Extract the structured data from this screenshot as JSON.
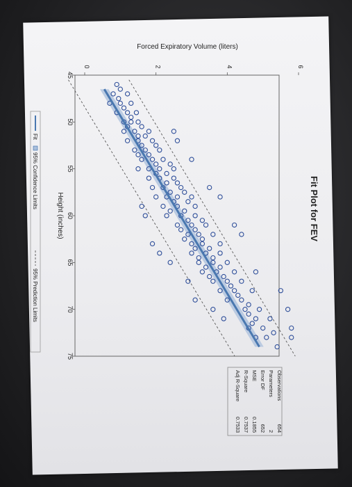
{
  "chart_data": {
    "type": "scatter",
    "title": "Fit Plot for FEV",
    "xlabel": "Height (inches)",
    "ylabel": "Forced Expiratory Volume (liters)",
    "xlim": [
      45,
      75
    ],
    "ylim": [
      0,
      6
    ],
    "x_ticks": [
      "45",
      "50",
      "55",
      "60",
      "65",
      "70",
      "75"
    ],
    "y_ticks": [
      "0",
      "2",
      "4",
      "6"
    ],
    "series": [
      {
        "name": "Fit",
        "type": "line",
        "color": "#4a78b0",
        "x": [
          46.5,
          74.0
        ],
        "y": [
          0.55,
          4.9
        ]
      },
      {
        "name": "95% Confidence Limits",
        "type": "band",
        "color": "#a9bfdc"
      },
      {
        "name": "95% Prediction Limits",
        "type": "dashed",
        "color": "#555555",
        "offset": 0.85
      }
    ],
    "points": [
      [
        46,
        0.9
      ],
      [
        46.5,
        1.0
      ],
      [
        47,
        0.8
      ],
      [
        47,
        1.2
      ],
      [
        47.5,
        0.95
      ],
      [
        48,
        1.0
      ],
      [
        48,
        1.3
      ],
      [
        48,
        0.7
      ],
      [
        48.5,
        1.1
      ],
      [
        49,
        1.2
      ],
      [
        49,
        1.45
      ],
      [
        49,
        0.9
      ],
      [
        49.5,
        1.3
      ],
      [
        50,
        1.1
      ],
      [
        50,
        1.5
      ],
      [
        50,
        1.3
      ],
      [
        50.5,
        1.6
      ],
      [
        50.5,
        1.2
      ],
      [
        51,
        1.4
      ],
      [
        51,
        1.8
      ],
      [
        51,
        1.1
      ],
      [
        51.5,
        1.5
      ],
      [
        51.5,
        1.7
      ],
      [
        52,
        1.5
      ],
      [
        52,
        1.9
      ],
      [
        52,
        1.2
      ],
      [
        52.5,
        1.6
      ],
      [
        52.5,
        2.0
      ],
      [
        53,
        1.7
      ],
      [
        53,
        1.4
      ],
      [
        53,
        2.1
      ],
      [
        53.5,
        1.8
      ],
      [
        53.5,
        1.5
      ],
      [
        54,
        1.9
      ],
      [
        54,
        2.2
      ],
      [
        54,
        1.6
      ],
      [
        54.5,
        2.0
      ],
      [
        54.5,
        2.4
      ],
      [
        55,
        1.8
      ],
      [
        55,
        2.1
      ],
      [
        55,
        2.5
      ],
      [
        55,
        1.5
      ],
      [
        55.5,
        2.0
      ],
      [
        55.5,
        2.3
      ],
      [
        56,
        2.1
      ],
      [
        56,
        2.5
      ],
      [
        56,
        1.8
      ],
      [
        56.5,
        2.3
      ],
      [
        56.5,
        2.6
      ],
      [
        57,
        2.2
      ],
      [
        57,
        2.7
      ],
      [
        57,
        1.9
      ],
      [
        57.5,
        2.4
      ],
      [
        57.5,
        2.8
      ],
      [
        58,
        2.3
      ],
      [
        58,
        2.6
      ],
      [
        58,
        3.0
      ],
      [
        58,
        2.0
      ],
      [
        58.5,
        2.5
      ],
      [
        58.5,
        2.9
      ],
      [
        59,
        2.6
      ],
      [
        59,
        3.1
      ],
      [
        59,
        2.2
      ],
      [
        59.5,
        2.8
      ],
      [
        59.5,
        2.4
      ],
      [
        60,
        2.7
      ],
      [
        60,
        3.1
      ],
      [
        60,
        2.3
      ],
      [
        60.5,
        2.9
      ],
      [
        60.5,
        3.3
      ],
      [
        61,
        3.0
      ],
      [
        61,
        2.6
      ],
      [
        61,
        3.4
      ],
      [
        61.5,
        3.1
      ],
      [
        61.5,
        2.7
      ],
      [
        62,
        3.2
      ],
      [
        62,
        2.9
      ],
      [
        62,
        3.6
      ],
      [
        62.5,
        3.3
      ],
      [
        62.5,
        2.8
      ],
      [
        63,
        3.3
      ],
      [
        63,
        3.0
      ],
      [
        63,
        3.8
      ],
      [
        63.5,
        3.5
      ],
      [
        63.5,
        3.1
      ],
      [
        64,
        3.4
      ],
      [
        64,
        3.8
      ],
      [
        64,
        3.0
      ],
      [
        64.5,
        3.6
      ],
      [
        64.5,
        3.2
      ],
      [
        65,
        3.6
      ],
      [
        65,
        4.0
      ],
      [
        65,
        3.2
      ],
      [
        65.5,
        3.8
      ],
      [
        65.5,
        3.4
      ],
      [
        66,
        3.7
      ],
      [
        66,
        4.2
      ],
      [
        66,
        3.3
      ],
      [
        66.5,
        3.9
      ],
      [
        66.5,
        3.5
      ],
      [
        67,
        4.0
      ],
      [
        67,
        4.4
      ],
      [
        67,
        3.6
      ],
      [
        67.5,
        4.1
      ],
      [
        68,
        4.2
      ],
      [
        68,
        3.8
      ],
      [
        68,
        4.7
      ],
      [
        68.5,
        4.3
      ],
      [
        69,
        4.4
      ],
      [
        69,
        4.0
      ],
      [
        69.5,
        4.6
      ],
      [
        70,
        4.5
      ],
      [
        70,
        4.9
      ],
      [
        70.5,
        4.6
      ],
      [
        71,
        4.8
      ],
      [
        71,
        5.2
      ],
      [
        71.5,
        4.7
      ],
      [
        72,
        5.0
      ],
      [
        72,
        4.6
      ],
      [
        72.5,
        5.3
      ],
      [
        73,
        5.1
      ],
      [
        73,
        4.8
      ],
      [
        74,
        5.4
      ],
      [
        71,
        3.9
      ],
      [
        68,
        5.5
      ],
      [
        70,
        5.7
      ],
      [
        72,
        5.8
      ],
      [
        73,
        5.8
      ],
      [
        60,
        1.7
      ],
      [
        63,
        1.9
      ],
      [
        64,
        2.1
      ],
      [
        57,
        3.5
      ],
      [
        54,
        3.0
      ],
      [
        51,
        2.5
      ],
      [
        62,
        4.4
      ],
      [
        66,
        4.8
      ],
      [
        52,
        2.6
      ],
      [
        58,
        3.8
      ],
      [
        61,
        4.2
      ],
      [
        69,
        3.1
      ],
      [
        67,
        2.9
      ],
      [
        65,
        2.4
      ],
      [
        70,
        3.6
      ],
      [
        59,
        1.6
      ]
    ],
    "stats": {
      "labels": [
        "Observations",
        "Parameters",
        "Error DF",
        "MSE",
        "R-Square",
        "Adj R-Square"
      ],
      "values": [
        "654",
        "2",
        "652",
        "0.1855",
        "0.7537",
        "0.7533"
      ]
    },
    "legend": [
      {
        "name": "Fit",
        "marker": "line"
      },
      {
        "name": "95% Confidence Limits",
        "marker": "box"
      },
      {
        "name": "95% Prediction Limits",
        "marker": "dash"
      }
    ]
  }
}
